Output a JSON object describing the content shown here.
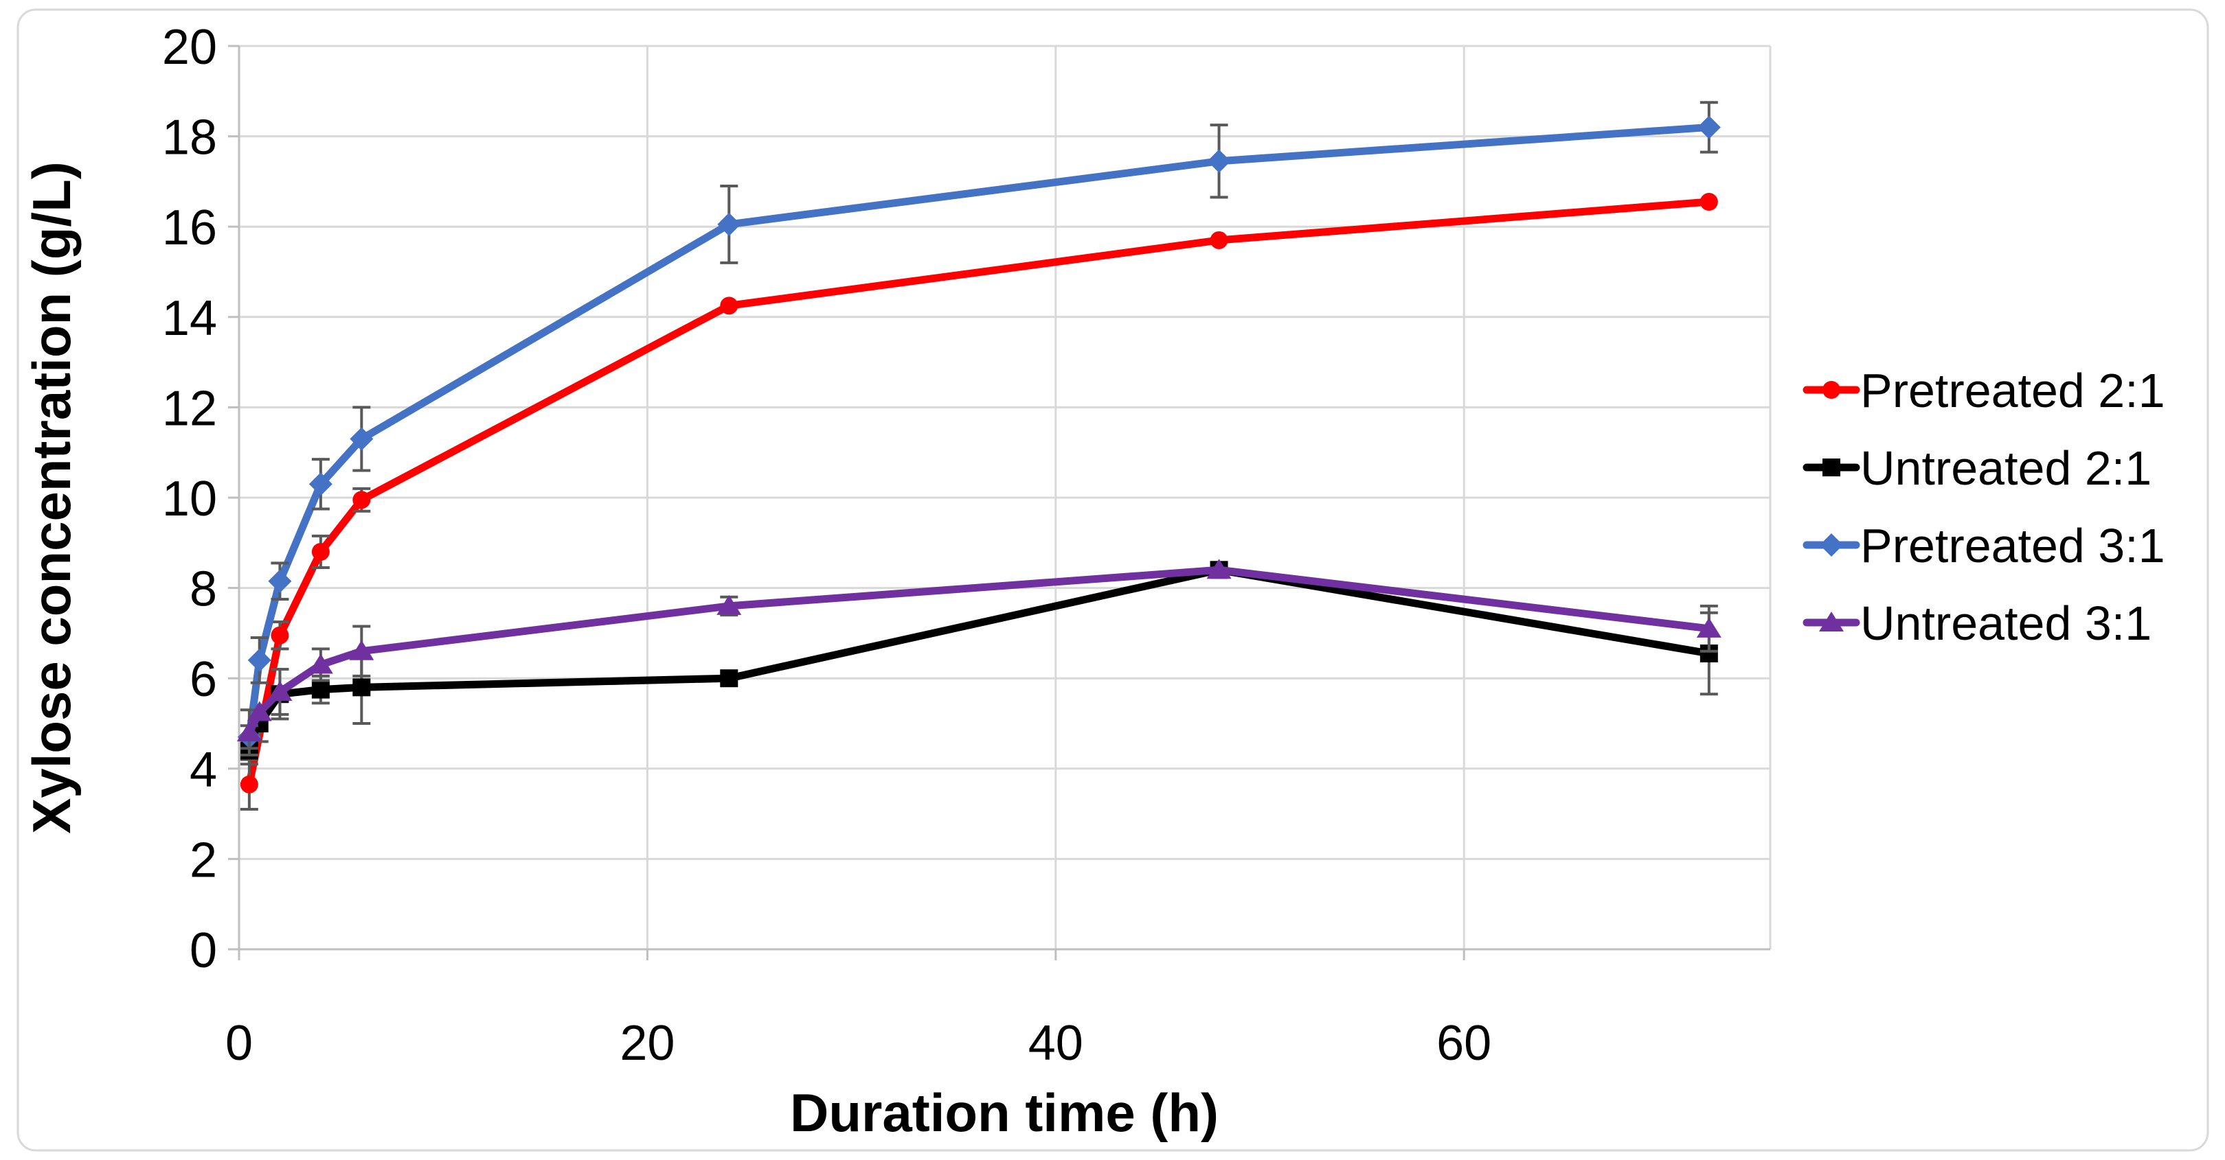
{
  "chart_data": {
    "type": "line",
    "title": "",
    "xlabel": "Duration time (h)",
    "ylabel": "Xylose concentration (g/L)",
    "xlim": [
      0,
      75
    ],
    "ylim": [
      0,
      20
    ],
    "x_ticks": [
      0,
      20,
      40,
      60
    ],
    "y_ticks": [
      0,
      2,
      4,
      6,
      8,
      10,
      12,
      14,
      16,
      18,
      20
    ],
    "grid": true,
    "legend_position": "right",
    "background_color": "#ffffff",
    "figure_border_color": "#d9d9d9",
    "gridline_color": "#d9d9d9",
    "axis_color": "#bfbfbf",
    "error_bar_color": "#595959",
    "series": [
      {
        "name": "Pretreated 2:1",
        "color": "#ff0000",
        "marker": "circle",
        "x": [
          0.5,
          2,
          4,
          6,
          24,
          48,
          72
        ],
        "y": [
          3.65,
          6.95,
          8.8,
          9.95,
          14.25,
          15.7,
          16.55
        ],
        "yerr": [
          0.55,
          0.3,
          0.35,
          0.25,
          0,
          0,
          0
        ]
      },
      {
        "name": "Untreated 2:1",
        "color": "#000000",
        "marker": "square",
        "x": [
          0.5,
          1,
          2,
          4,
          6,
          24,
          48,
          72
        ],
        "y": [
          4.4,
          5.0,
          5.65,
          5.75,
          5.8,
          6.0,
          8.4,
          6.55
        ],
        "yerr": [
          0.3,
          0.4,
          0.55,
          0.3,
          0.8,
          0,
          0,
          0.9
        ]
      },
      {
        "name": "Pretreated 3:1",
        "color": "#4472c4",
        "marker": "diamond",
        "x": [
          0.5,
          1,
          2,
          4,
          6,
          24,
          48,
          72
        ],
        "y": [
          4.7,
          6.4,
          8.15,
          10.3,
          11.3,
          16.05,
          17.45,
          18.2
        ],
        "yerr": [
          0.25,
          0.5,
          0.4,
          0.55,
          0.7,
          0.85,
          0.8,
          0.55
        ]
      },
      {
        "name": "Untreated 3:1",
        "color": "#7030a0",
        "marker": "triangle",
        "x": [
          0.5,
          1,
          2,
          4,
          6,
          24,
          48,
          72
        ],
        "y": [
          4.8,
          5.25,
          5.7,
          6.3,
          6.6,
          7.6,
          8.4,
          7.1
        ],
        "yerr": [
          0.5,
          0,
          0.5,
          0.35,
          0.55,
          0.2,
          0,
          0.5
        ]
      }
    ]
  }
}
